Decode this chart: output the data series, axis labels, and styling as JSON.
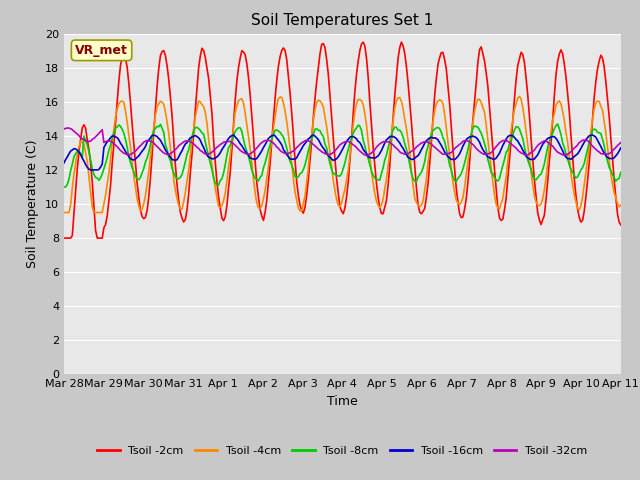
{
  "title": "Soil Temperatures Set 1",
  "xlabel": "Time",
  "ylabel": "Soil Temperature (C)",
  "ylim": [
    0,
    20
  ],
  "yticks": [
    0,
    2,
    4,
    6,
    8,
    10,
    12,
    14,
    16,
    18,
    20
  ],
  "fig_bg_color": "#c8c8c8",
  "ax_bg_color": "#e8e8e8",
  "grid_color": "#ffffff",
  "annotation_text": "VR_met",
  "annotation_color": "#880000",
  "annotation_bg": "#ffffcc",
  "annotation_border": "#999900",
  "lines": {
    "Tsoil -2cm": {
      "color": "#ff0000",
      "lw": 1.2
    },
    "Tsoil -4cm": {
      "color": "#ff8800",
      "lw": 1.2
    },
    "Tsoil -8cm": {
      "color": "#00cc00",
      "lw": 1.2
    },
    "Tsoil -16cm": {
      "color": "#0000cc",
      "lw": 1.2
    },
    "Tsoil -32cm": {
      "color": "#bb00bb",
      "lw": 1.2
    }
  },
  "x_tick_labels": [
    "Mar 28",
    "Mar 29",
    "Mar 30",
    "Mar 31",
    "Apr 1",
    "Apr 2",
    "Apr 3",
    "Apr 4",
    "Apr 5",
    "Apr 6",
    "Apr 7",
    "Apr 8",
    "Apr 9",
    "Apr 10",
    "Apr 11"
  ],
  "n_points": 336,
  "title_fontsize": 11,
  "label_fontsize": 9,
  "tick_fontsize": 8,
  "legend_fontsize": 8
}
